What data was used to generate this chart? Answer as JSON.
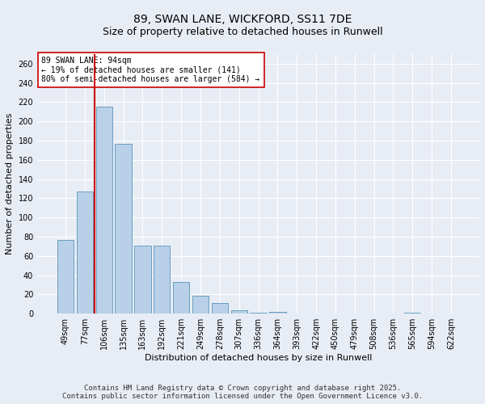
{
  "title": "89, SWAN LANE, WICKFORD, SS11 7DE",
  "subtitle": "Size of property relative to detached houses in Runwell",
  "xlabel": "Distribution of detached houses by size in Runwell",
  "ylabel": "Number of detached properties",
  "categories": [
    "49sqm",
    "77sqm",
    "106sqm",
    "135sqm",
    "163sqm",
    "192sqm",
    "221sqm",
    "249sqm",
    "278sqm",
    "307sqm",
    "336sqm",
    "364sqm",
    "393sqm",
    "422sqm",
    "450sqm",
    "479sqm",
    "508sqm",
    "536sqm",
    "565sqm",
    "594sqm",
    "622sqm"
  ],
  "values": [
    77,
    127,
    215,
    177,
    71,
    71,
    33,
    19,
    11,
    4,
    1,
    2,
    0,
    0,
    0,
    0,
    0,
    0,
    1,
    0,
    0
  ],
  "bar_color": "#b8d0e8",
  "bar_edge_color": "#6a9fc0",
  "vline_color": "#cc0000",
  "annotation_text": "89 SWAN LANE: 94sqm\n← 19% of detached houses are smaller (141)\n80% of semi-detached houses are larger (584) →",
  "annotation_box_color": "#ffffff",
  "annotation_box_edge_color": "#cc0000",
  "ylim": [
    0,
    270
  ],
  "yticks": [
    0,
    20,
    40,
    60,
    80,
    100,
    120,
    140,
    160,
    180,
    200,
    220,
    240,
    260
  ],
  "background_color": "#e8edf5",
  "grid_color": "#ffffff",
  "footer_line1": "Contains HM Land Registry data © Crown copyright and database right 2025.",
  "footer_line2": "Contains public sector information licensed under the Open Government Licence v3.0.",
  "title_fontsize": 10,
  "subtitle_fontsize": 9,
  "axis_label_fontsize": 8,
  "tick_fontsize": 7,
  "annotation_fontsize": 7,
  "footer_fontsize": 6.5
}
